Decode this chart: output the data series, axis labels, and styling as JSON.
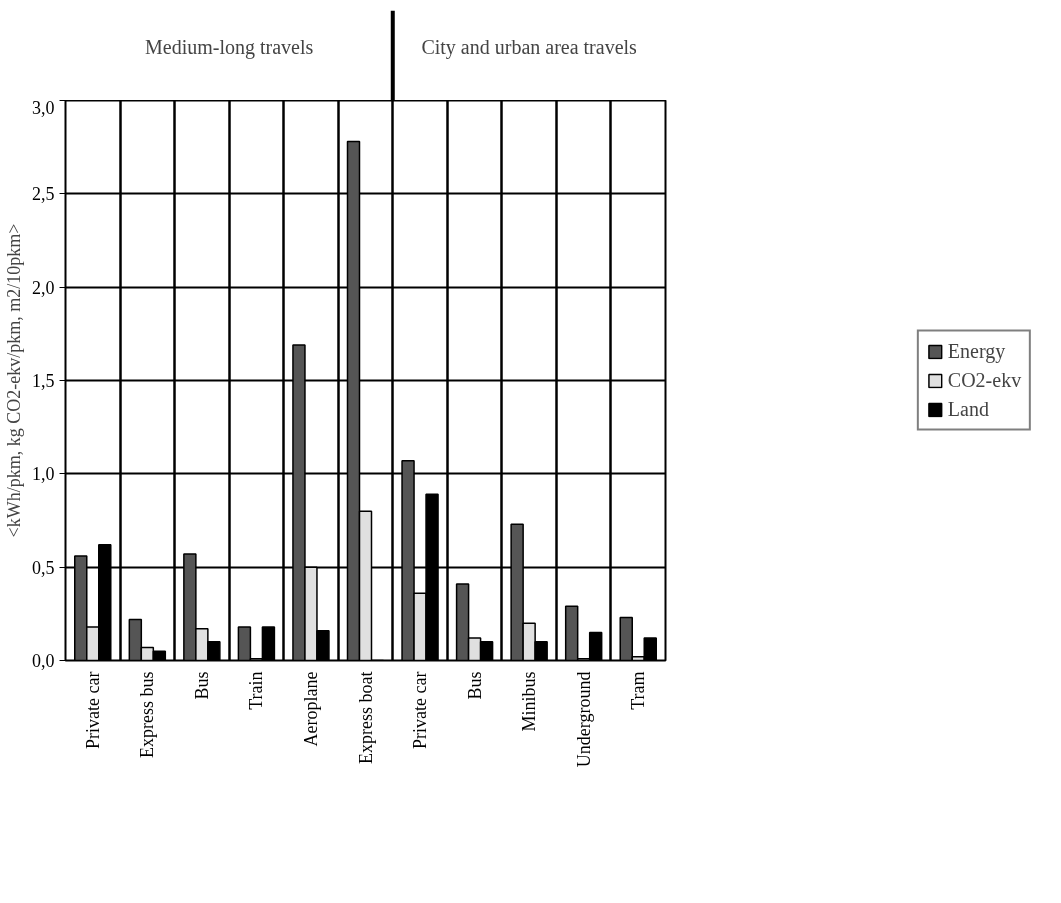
{
  "chart_data": {
    "type": "bar",
    "ylabel": "<kWh/pkm, kg CO2-ekv/pkm, m2/10pkm>",
    "categories": [
      "Private car",
      "Express bus",
      "Bus",
      "Train",
      "Aeroplane",
      "Express boat",
      "Private car",
      "Bus",
      "Minibus",
      "Underground",
      "Tram"
    ],
    "series": [
      {
        "name": "Energy",
        "color": "#555555",
        "values": [
          0.56,
          0.22,
          0.57,
          0.18,
          1.69,
          2.78,
          1.07,
          0.41,
          0.73,
          0.29,
          0.23
        ]
      },
      {
        "name": "CO2-ekv",
        "color": "#e0e0e0",
        "values": [
          0.18,
          0.07,
          0.17,
          0.01,
          0.5,
          0.8,
          0.36,
          0.12,
          0.2,
          0.01,
          0.02
        ]
      },
      {
        "name": "Land",
        "color": "#000000",
        "values": [
          0.62,
          0.05,
          0.1,
          0.18,
          0.16,
          0,
          0.89,
          0.1,
          0.1,
          0.15,
          0.12
        ]
      }
    ],
    "ylim": [
      0,
      3
    ],
    "yticks": [
      {
        "value": 0,
        "label": "0,0"
      },
      {
        "value": 0.5,
        "label": "0,5"
      },
      {
        "value": 1,
        "label": "1,0"
      },
      {
        "value": 1.5,
        "label": "1,5"
      },
      {
        "value": 2,
        "label": "2,0"
      },
      {
        "value": 2.5,
        "label": "2,5"
      },
      {
        "value": 3,
        "label": "3,0"
      }
    ],
    "annotations": [
      "Medium-long travels",
      "City and urban area travels"
    ],
    "grid": true,
    "legend": "right"
  }
}
